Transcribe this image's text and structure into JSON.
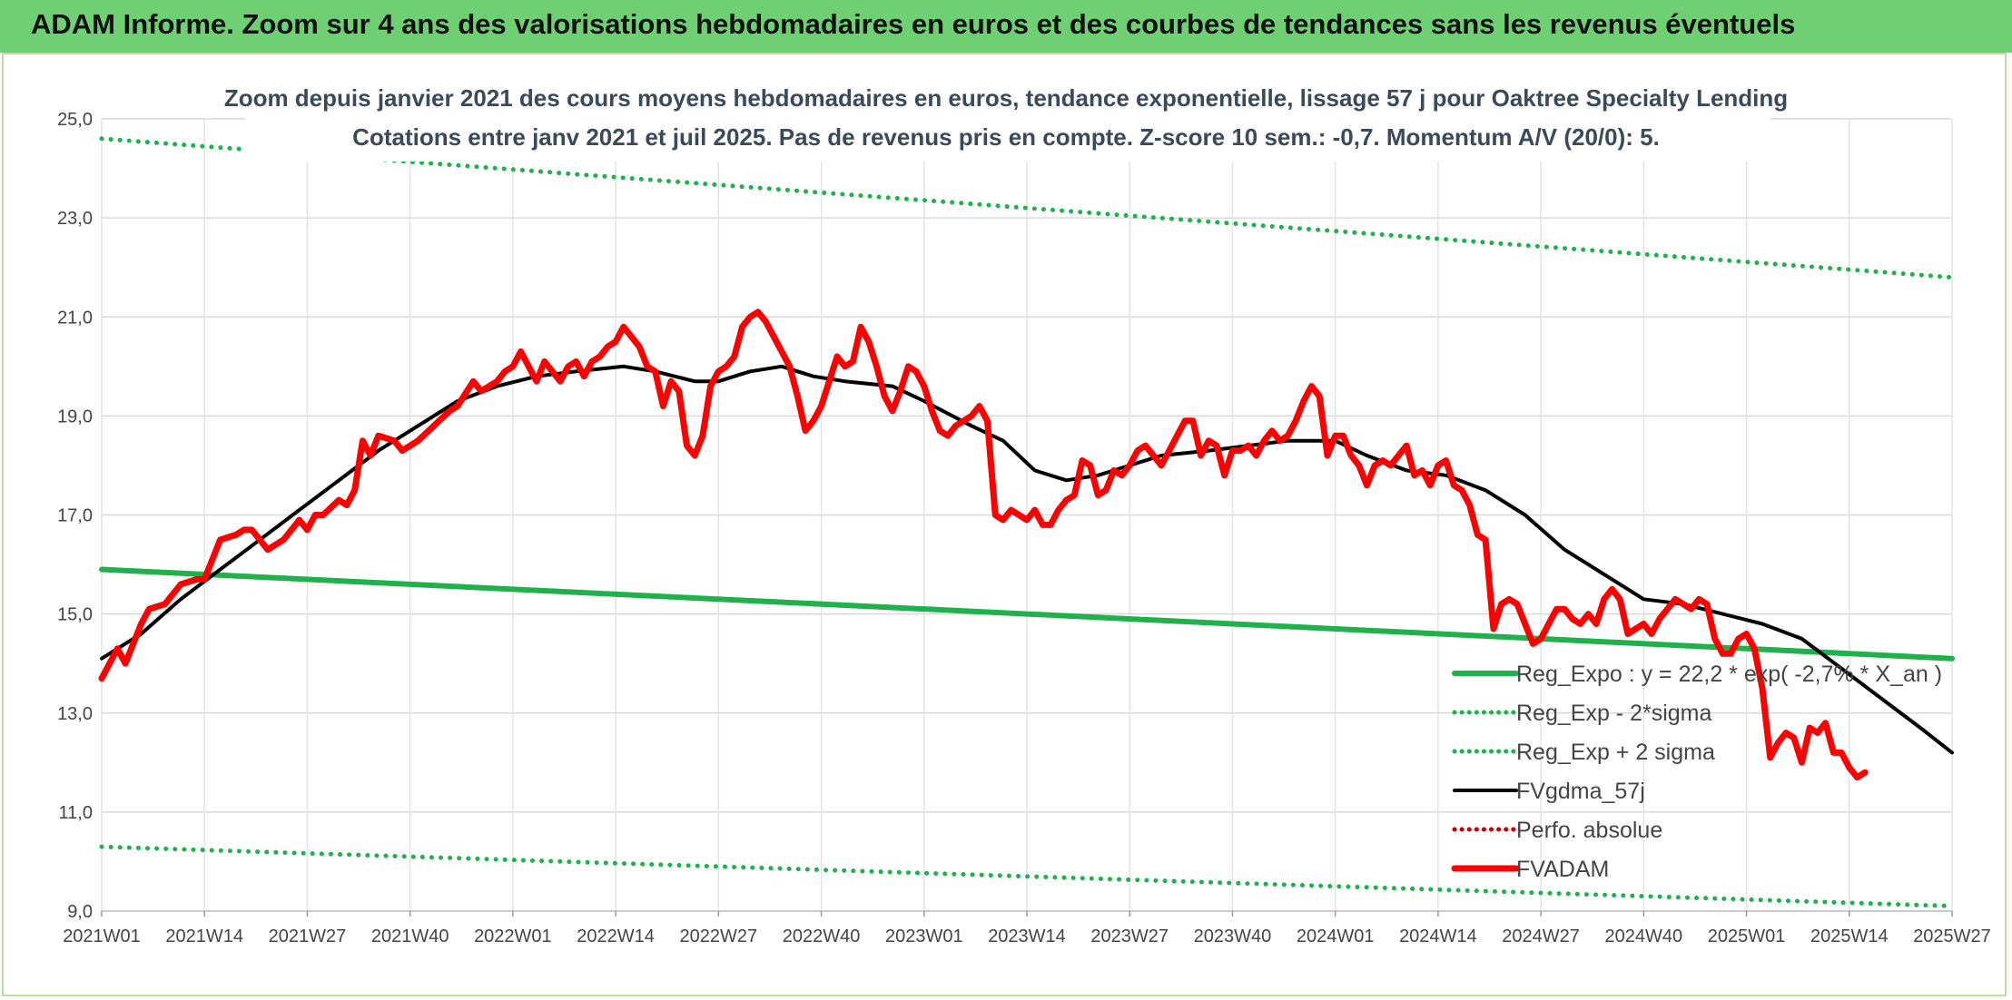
{
  "banner": {
    "title": "ADAM Informe. Zoom sur 4 ans des valorisations hebdomadaires en euros et des courbes de tendances sans les revenus éventuels"
  },
  "colors": {
    "banner": "#6fcf73",
    "trend": "#1fb14b",
    "price": "#ff0000",
    "smooth": "#000000",
    "perf": "#c00000"
  },
  "chart_data": {
    "type": "line",
    "title": "",
    "subtitle": [
      "Zoom depuis janvier 2021 des cours moyens hebdomadaires en euros, tendance exponentielle, lissage 57 j pour Oaktree Specialty Lending",
      "Cotations entre janv 2021 et juil 2025. Pas de revenus pris en compte. Z-score 10 sem.: -0,7. Momentum A/V (20/0): 5."
    ],
    "xlabel": "",
    "ylabel": "",
    "ylim": [
      9.0,
      25.0
    ],
    "yticks": [
      "9,0",
      "11,0",
      "13,0",
      "15,0",
      "17,0",
      "19,0",
      "21,0",
      "23,0",
      "25,0"
    ],
    "ytick_values": [
      9,
      11,
      13,
      15,
      17,
      19,
      21,
      23,
      25
    ],
    "xlim": [
      0,
      234
    ],
    "x_tick_labels": [
      "2021W01",
      "2021W14",
      "2021W27",
      "2021W40",
      "2022W01",
      "2022W14",
      "2022W27",
      "2022W40",
      "2023W01",
      "2023W14",
      "2023W27",
      "2023W40",
      "2024W01",
      "2024W14",
      "2024W27",
      "2024W40",
      "2025W01",
      "2025W14",
      "2025W27"
    ],
    "x_tick_positions": [
      0,
      13,
      26,
      39,
      52,
      65,
      78,
      91,
      104,
      117,
      130,
      143,
      156,
      169,
      182,
      195,
      208,
      221,
      234
    ],
    "grid": true,
    "legend_position": "bottom-right",
    "series": [
      {
        "name": "Reg_Expo : y = 22,2 * exp( -2,7% * X_an )",
        "style": "solid",
        "color": "#1fb14b",
        "points": [
          [
            0,
            15.9
          ],
          [
            234,
            14.1
          ]
        ]
      },
      {
        "name": "Reg_Exp - 2*sigma",
        "style": "dotted",
        "color": "#1fb14b",
        "points": [
          [
            0,
            10.3
          ],
          [
            234,
            9.1
          ]
        ]
      },
      {
        "name": "Reg_Exp + 2 sigma",
        "style": "dotted",
        "color": "#1fb14b",
        "points": [
          [
            0,
            24.6
          ],
          [
            234,
            21.8
          ]
        ]
      },
      {
        "name": "FVgdma_57j",
        "style": "solid",
        "color": "#000000",
        "points": [
          [
            0,
            14.1
          ],
          [
            5,
            14.6
          ],
          [
            10,
            15.3
          ],
          [
            15,
            15.9
          ],
          [
            20,
            16.5
          ],
          [
            25,
            17.1
          ],
          [
            30,
            17.7
          ],
          [
            35,
            18.3
          ],
          [
            40,
            18.8
          ],
          [
            45,
            19.3
          ],
          [
            50,
            19.6
          ],
          [
            55,
            19.8
          ],
          [
            60,
            19.9
          ],
          [
            66,
            20.0
          ],
          [
            70,
            19.9
          ],
          [
            75,
            19.7
          ],
          [
            78,
            19.7
          ],
          [
            82,
            19.9
          ],
          [
            86,
            20.0
          ],
          [
            90,
            19.8
          ],
          [
            94,
            19.7
          ],
          [
            100,
            19.6
          ],
          [
            104,
            19.3
          ],
          [
            110,
            18.8
          ],
          [
            114,
            18.5
          ],
          [
            118,
            17.9
          ],
          [
            122,
            17.7
          ],
          [
            126,
            17.8
          ],
          [
            130,
            18.0
          ],
          [
            134,
            18.2
          ],
          [
            140,
            18.3
          ],
          [
            145,
            18.4
          ],
          [
            150,
            18.5
          ],
          [
            156,
            18.5
          ],
          [
            160,
            18.2
          ],
          [
            165,
            17.9
          ],
          [
            170,
            17.8
          ],
          [
            175,
            17.5
          ],
          [
            180,
            17.0
          ],
          [
            185,
            16.3
          ],
          [
            190,
            15.8
          ],
          [
            195,
            15.3
          ],
          [
            200,
            15.2
          ],
          [
            205,
            15.0
          ],
          [
            210,
            14.8
          ],
          [
            215,
            14.5
          ],
          [
            220,
            13.9
          ],
          [
            225,
            13.3
          ],
          [
            230,
            12.7
          ],
          [
            234,
            12.2
          ]
        ]
      },
      {
        "name": "Perfo. absolue",
        "style": "dotted",
        "color": "#c00000",
        "points": []
      },
      {
        "name": "FVADAM",
        "style": "solid",
        "color": "#ff0000",
        "points": [
          [
            0,
            13.7
          ],
          [
            2,
            14.3
          ],
          [
            3,
            14.0
          ],
          [
            5,
            14.8
          ],
          [
            6,
            15.1
          ],
          [
            8,
            15.2
          ],
          [
            10,
            15.6
          ],
          [
            12,
            15.7
          ],
          [
            13,
            15.7
          ],
          [
            15,
            16.5
          ],
          [
            17,
            16.6
          ],
          [
            18,
            16.7
          ],
          [
            19,
            16.7
          ],
          [
            21,
            16.3
          ],
          [
            23,
            16.5
          ],
          [
            25,
            16.9
          ],
          [
            26,
            16.7
          ],
          [
            27,
            17.0
          ],
          [
            28,
            17.0
          ],
          [
            30,
            17.3
          ],
          [
            31,
            17.2
          ],
          [
            32,
            17.5
          ],
          [
            33,
            18.5
          ],
          [
            34,
            18.2
          ],
          [
            35,
            18.6
          ],
          [
            37,
            18.5
          ],
          [
            38,
            18.3
          ],
          [
            40,
            18.5
          ],
          [
            42,
            18.8
          ],
          [
            44,
            19.1
          ],
          [
            45,
            19.2
          ],
          [
            47,
            19.7
          ],
          [
            48,
            19.5
          ],
          [
            49,
            19.6
          ],
          [
            50,
            19.7
          ],
          [
            51,
            19.9
          ],
          [
            52,
            20.0
          ],
          [
            53,
            20.3
          ],
          [
            54,
            20.0
          ],
          [
            55,
            19.7
          ],
          [
            56,
            20.1
          ],
          [
            57,
            19.9
          ],
          [
            58,
            19.7
          ],
          [
            59,
            20.0
          ],
          [
            60,
            20.1
          ],
          [
            61,
            19.8
          ],
          [
            62,
            20.1
          ],
          [
            63,
            20.2
          ],
          [
            64,
            20.4
          ],
          [
            65,
            20.5
          ],
          [
            66,
            20.8
          ],
          [
            67,
            20.6
          ],
          [
            68,
            20.4
          ],
          [
            69,
            20.0
          ],
          [
            70,
            19.9
          ],
          [
            71,
            19.2
          ],
          [
            72,
            19.7
          ],
          [
            73,
            19.5
          ],
          [
            74,
            18.4
          ],
          [
            75,
            18.2
          ],
          [
            76,
            18.6
          ],
          [
            77,
            19.6
          ],
          [
            78,
            19.9
          ],
          [
            79,
            20.0
          ],
          [
            80,
            20.2
          ],
          [
            81,
            20.8
          ],
          [
            82,
            21.0
          ],
          [
            83,
            21.1
          ],
          [
            84,
            20.9
          ],
          [
            85,
            20.6
          ],
          [
            86,
            20.3
          ],
          [
            87,
            20.0
          ],
          [
            88,
            19.4
          ],
          [
            89,
            18.7
          ],
          [
            90,
            18.9
          ],
          [
            91,
            19.2
          ],
          [
            92,
            19.7
          ],
          [
            93,
            20.2
          ],
          [
            94,
            20.0
          ],
          [
            95,
            20.1
          ],
          [
            96,
            20.8
          ],
          [
            97,
            20.5
          ],
          [
            98,
            20.0
          ],
          [
            99,
            19.4
          ],
          [
            100,
            19.1
          ],
          [
            101,
            19.5
          ],
          [
            102,
            20.0
          ],
          [
            103,
            19.9
          ],
          [
            104,
            19.6
          ],
          [
            105,
            19.1
          ],
          [
            106,
            18.7
          ],
          [
            107,
            18.6
          ],
          [
            108,
            18.8
          ],
          [
            109,
            18.9
          ],
          [
            110,
            19.0
          ],
          [
            111,
            19.2
          ],
          [
            112,
            18.9
          ],
          [
            113,
            17.0
          ],
          [
            114,
            16.9
          ],
          [
            115,
            17.1
          ],
          [
            116,
            17.0
          ],
          [
            117,
            16.9
          ],
          [
            118,
            17.1
          ],
          [
            119,
            16.8
          ],
          [
            120,
            16.8
          ],
          [
            121,
            17.1
          ],
          [
            122,
            17.3
          ],
          [
            123,
            17.4
          ],
          [
            124,
            18.1
          ],
          [
            125,
            18.0
          ],
          [
            126,
            17.4
          ],
          [
            127,
            17.5
          ],
          [
            128,
            17.9
          ],
          [
            129,
            17.8
          ],
          [
            130,
            18.0
          ],
          [
            131,
            18.3
          ],
          [
            132,
            18.4
          ],
          [
            133,
            18.2
          ],
          [
            134,
            18.0
          ],
          [
            135,
            18.3
          ],
          [
            136,
            18.6
          ],
          [
            137,
            18.9
          ],
          [
            138,
            18.9
          ],
          [
            139,
            18.2
          ],
          [
            140,
            18.5
          ],
          [
            141,
            18.4
          ],
          [
            142,
            17.8
          ],
          [
            143,
            18.3
          ],
          [
            144,
            18.3
          ],
          [
            145,
            18.4
          ],
          [
            146,
            18.2
          ],
          [
            147,
            18.5
          ],
          [
            148,
            18.7
          ],
          [
            149,
            18.5
          ],
          [
            150,
            18.6
          ],
          [
            151,
            18.9
          ],
          [
            152,
            19.3
          ],
          [
            153,
            19.6
          ],
          [
            154,
            19.4
          ],
          [
            155,
            18.2
          ],
          [
            156,
            18.6
          ],
          [
            157,
            18.6
          ],
          [
            158,
            18.2
          ],
          [
            159,
            18.0
          ],
          [
            160,
            17.6
          ],
          [
            161,
            18.0
          ],
          [
            162,
            18.1
          ],
          [
            163,
            18.0
          ],
          [
            164,
            18.2
          ],
          [
            165,
            18.4
          ],
          [
            166,
            17.8
          ],
          [
            167,
            17.9
          ],
          [
            168,
            17.6
          ],
          [
            169,
            18.0
          ],
          [
            170,
            18.1
          ],
          [
            171,
            17.6
          ],
          [
            172,
            17.5
          ],
          [
            173,
            17.2
          ],
          [
            174,
            16.6
          ],
          [
            175,
            16.5
          ],
          [
            176,
            14.7
          ],
          [
            177,
            15.2
          ],
          [
            178,
            15.3
          ],
          [
            179,
            15.2
          ],
          [
            180,
            14.8
          ],
          [
            181,
            14.4
          ],
          [
            182,
            14.5
          ],
          [
            183,
            14.8
          ],
          [
            184,
            15.1
          ],
          [
            185,
            15.1
          ],
          [
            186,
            14.9
          ],
          [
            187,
            14.8
          ],
          [
            188,
            15.0
          ],
          [
            189,
            14.8
          ],
          [
            190,
            15.3
          ],
          [
            191,
            15.5
          ],
          [
            192,
            15.3
          ],
          [
            193,
            14.6
          ],
          [
            194,
            14.7
          ],
          [
            195,
            14.8
          ],
          [
            196,
            14.6
          ],
          [
            197,
            14.9
          ],
          [
            198,
            15.1
          ],
          [
            199,
            15.3
          ],
          [
            200,
            15.2
          ],
          [
            201,
            15.1
          ],
          [
            202,
            15.3
          ],
          [
            203,
            15.2
          ],
          [
            204,
            14.5
          ],
          [
            205,
            14.2
          ],
          [
            206,
            14.2
          ],
          [
            207,
            14.5
          ],
          [
            208,
            14.6
          ],
          [
            209,
            14.3
          ],
          [
            210,
            13.5
          ],
          [
            211,
            12.1
          ],
          [
            212,
            12.4
          ],
          [
            213,
            12.6
          ],
          [
            214,
            12.5
          ],
          [
            215,
            12.0
          ],
          [
            216,
            12.7
          ],
          [
            217,
            12.6
          ],
          [
            218,
            12.8
          ],
          [
            219,
            12.2
          ],
          [
            220,
            12.2
          ],
          [
            221,
            11.9
          ],
          [
            222,
            11.7
          ],
          [
            223,
            11.8
          ]
        ]
      }
    ]
  }
}
